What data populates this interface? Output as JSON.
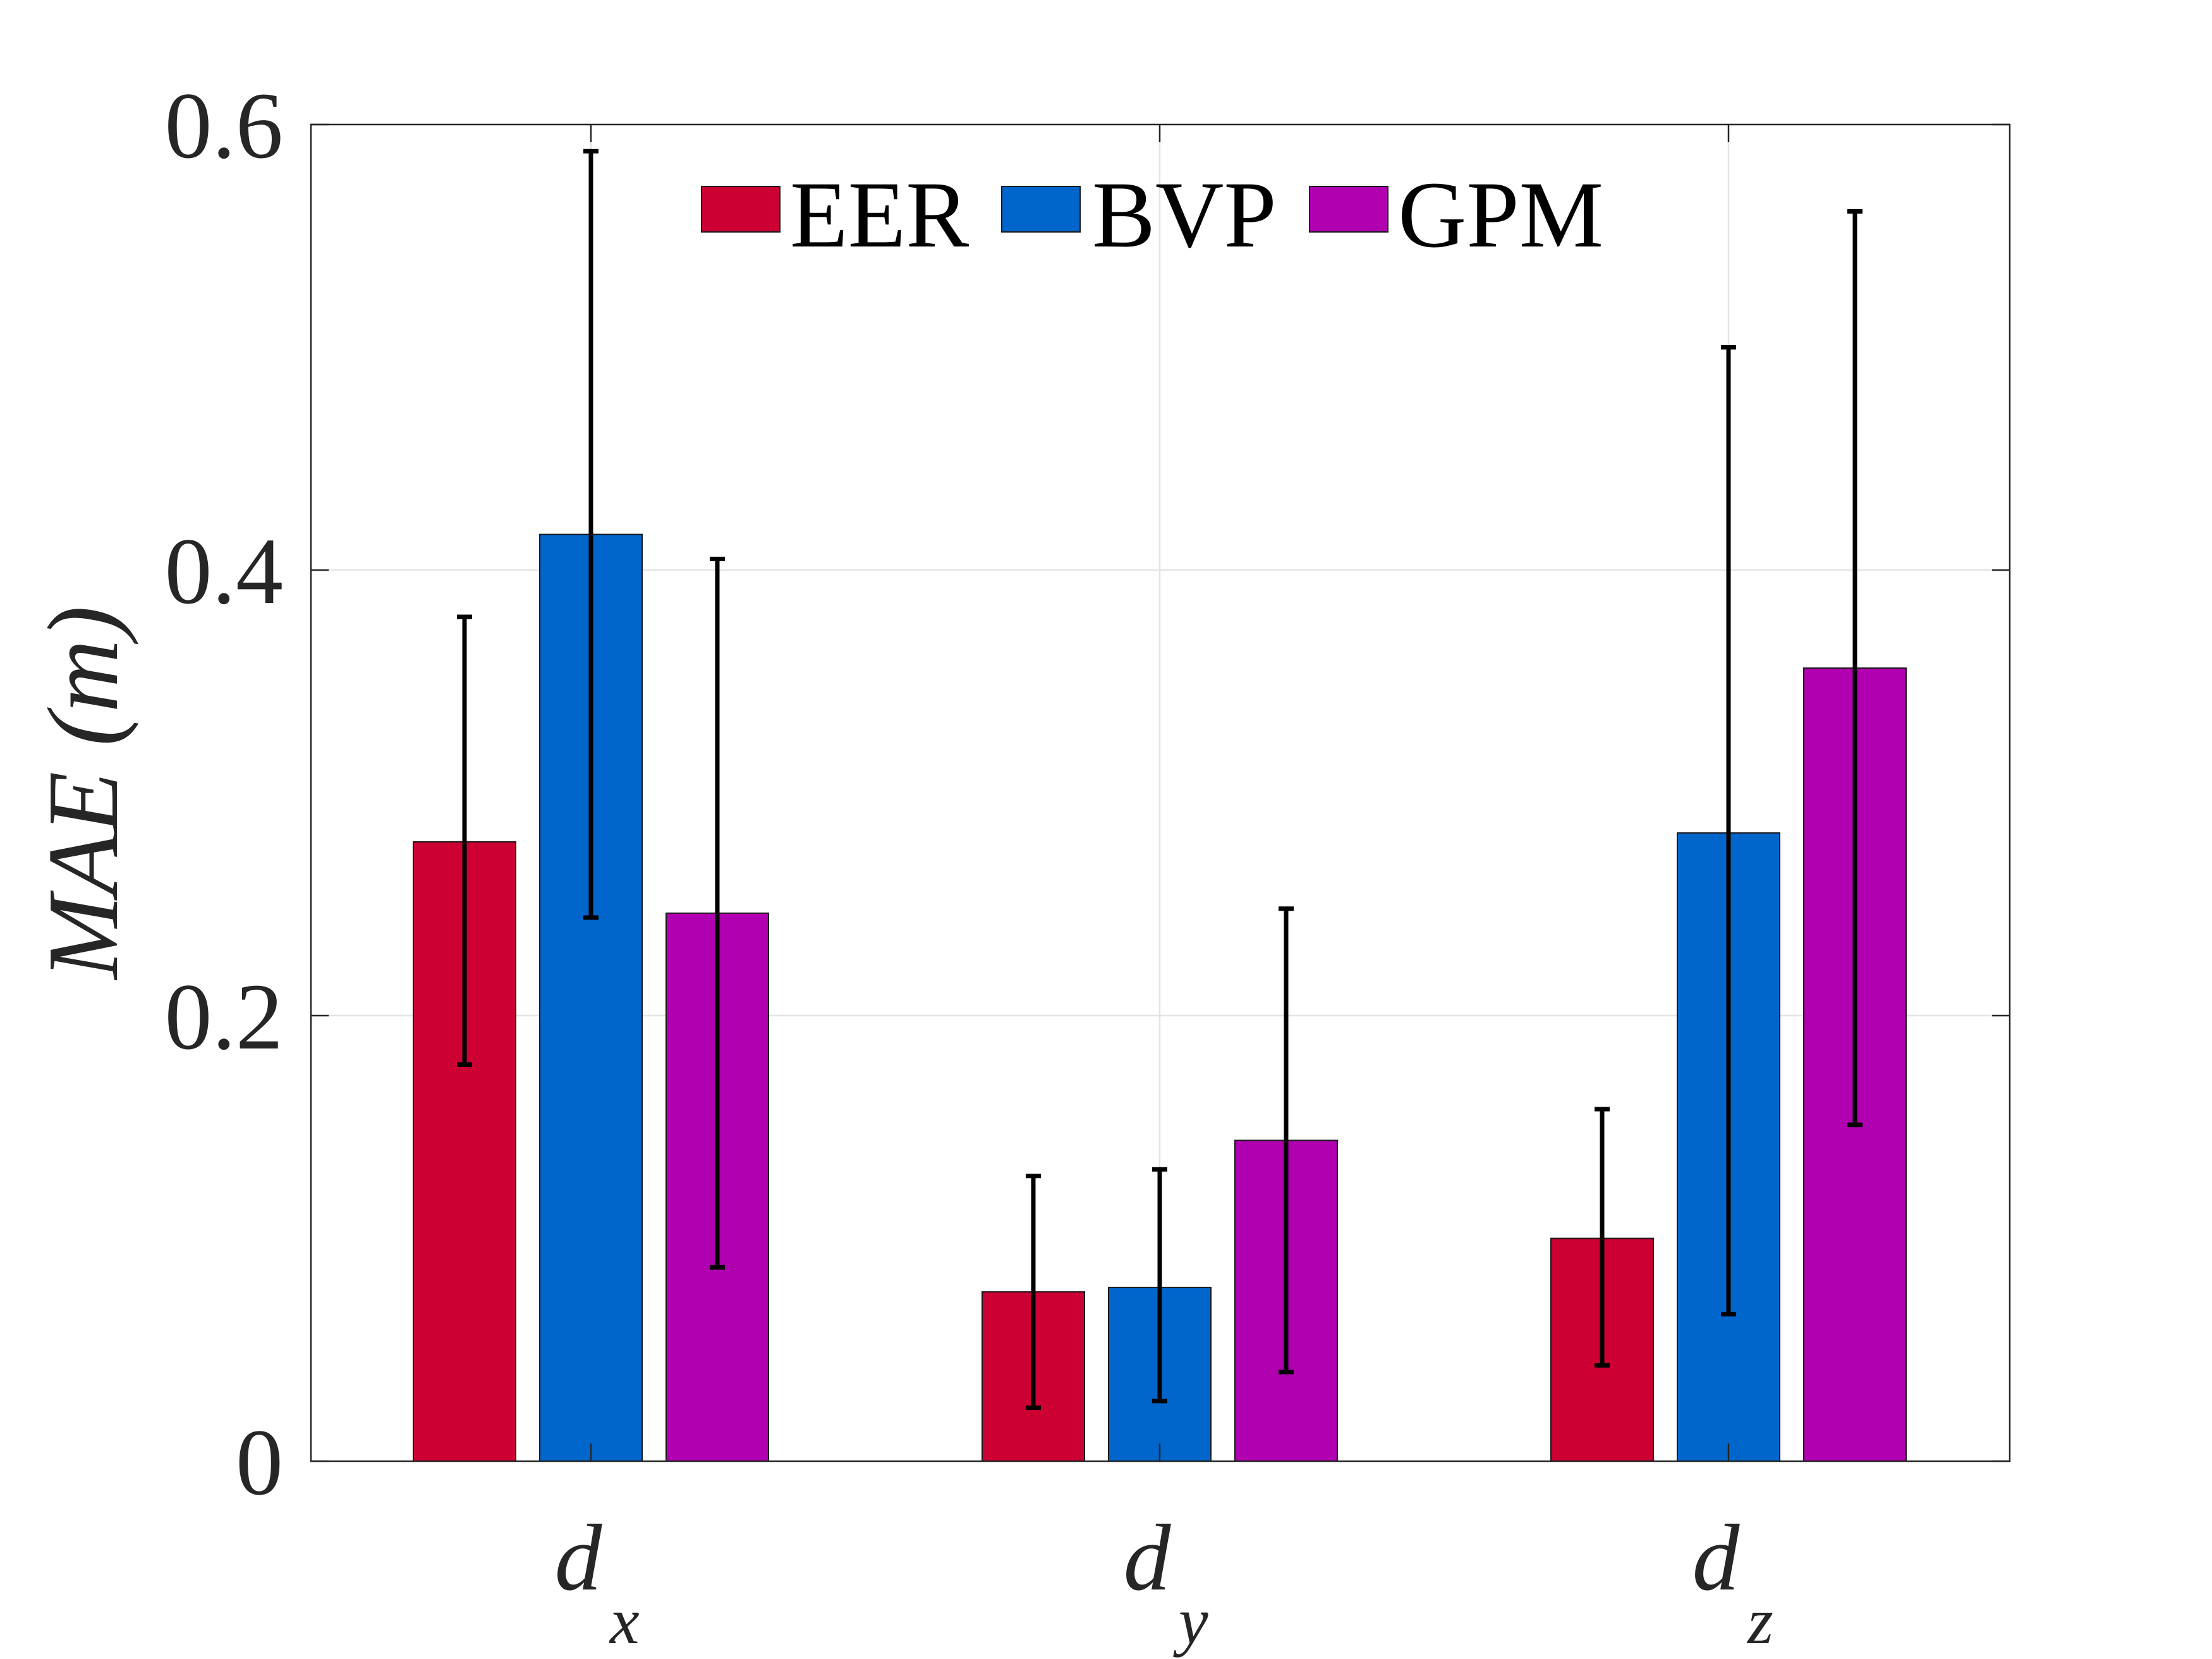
{
  "chart_data": {
    "type": "bar",
    "title": "",
    "xlabel": "",
    "ylabel": "MAE (m)",
    "ylim": [
      0,
      0.6
    ],
    "yticks": [
      0,
      0.2,
      0.4,
      0.6
    ],
    "ytick_labels": [
      "0",
      "0.2",
      "0.4",
      "0.6"
    ],
    "grid": true,
    "legend_position": "top-center",
    "categories": [
      {
        "main": "d",
        "sub": "x"
      },
      {
        "main": "d",
        "sub": "y"
      },
      {
        "main": "d",
        "sub": "z"
      }
    ],
    "series": [
      {
        "name": "EER",
        "color": "#cc0033",
        "values": [
          0.278,
          0.076,
          0.1
        ],
        "error_low": [
          0.178,
          0.024,
          0.043
        ],
        "error_high": [
          0.379,
          0.128,
          0.158
        ]
      },
      {
        "name": "BVP",
        "color": "#0066cc",
        "values": [
          0.416,
          0.078,
          0.282
        ],
        "error_low": [
          0.244,
          0.027,
          0.066
        ],
        "error_high": [
          0.588,
          0.131,
          0.5
        ]
      },
      {
        "name": "GPM",
        "color": "#b000b0",
        "values": [
          0.246,
          0.144,
          0.356
        ],
        "error_low": [
          0.087,
          0.04,
          0.151
        ],
        "error_high": [
          0.405,
          0.248,
          0.561
        ]
      }
    ]
  }
}
